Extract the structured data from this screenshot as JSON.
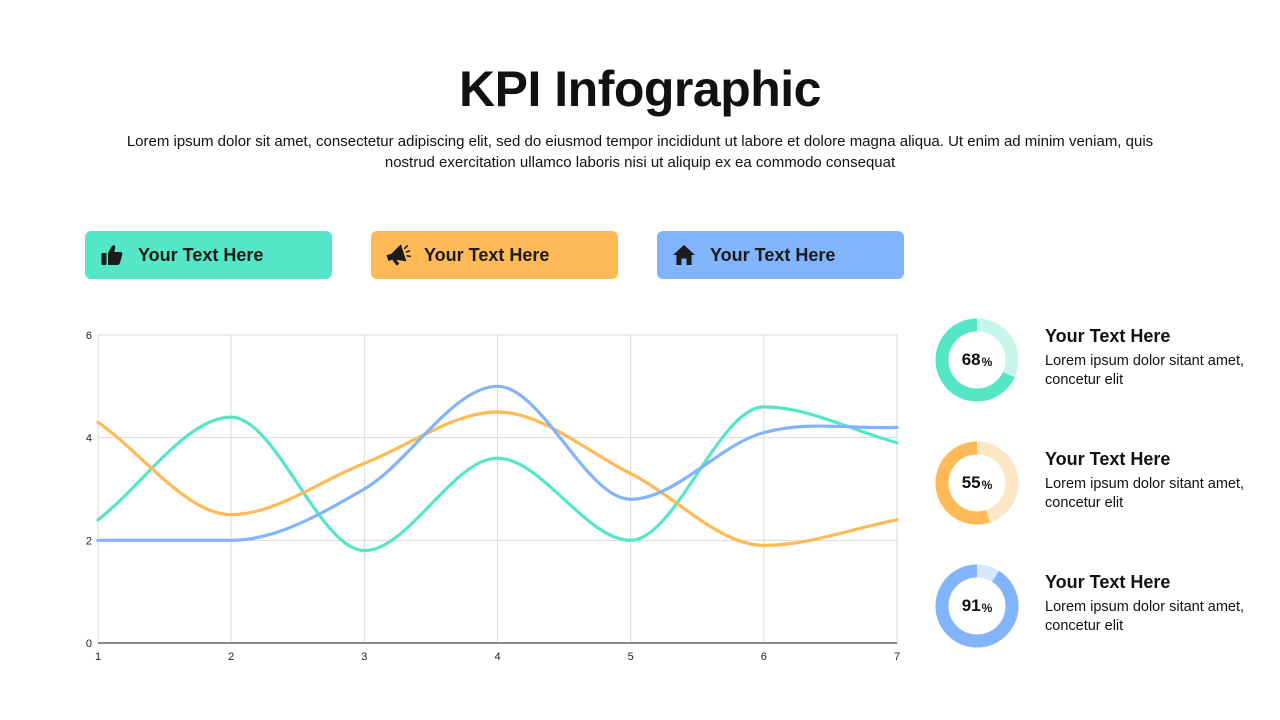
{
  "title": "KPI Infographic",
  "subtitle": "Lorem ipsum dolor sit amet, consectetur adipiscing elit, sed do eiusmod tempor incididunt ut labore et dolore magna aliqua. Ut enim ad minim veniam, quis nostrud exercitation ullamco laboris nisi ut aliquip ex ea commodo consequat",
  "pills": [
    {
      "label": "Your Text Here",
      "icon": "thumbs-up-icon",
      "color": "#55e6c8"
    },
    {
      "label": "Your Text Here",
      "icon": "megaphone-icon",
      "color": "#ffb957"
    },
    {
      "label": "Your Text Here",
      "icon": "home-icon",
      "color": "#82b4fc"
    }
  ],
  "kpis": [
    {
      "value": "68",
      "unit": "%",
      "percent": 68,
      "title": "Your Text Here",
      "text": "Lorem ipsum dolor sitant amet, concetur elit",
      "color": "#55e6c8",
      "track": "#c8f5ea"
    },
    {
      "value": "55",
      "unit": "%",
      "percent": 55,
      "title": "Your Text Here",
      "text": "Lorem ipsum dolor sitant amet, concetur elit",
      "color": "#ffb957",
      "track": "#fde6c3"
    },
    {
      "value": "91",
      "unit": "%",
      "percent": 91,
      "title": "Your Text Here",
      "text": "Lorem ipsum dolor sitant amet, concetur elit",
      "color": "#82b4fc",
      "track": "#d6e6fe"
    }
  ],
  "chart_data": {
    "type": "line",
    "x": [
      1,
      2,
      3,
      4,
      5,
      6,
      7
    ],
    "series": [
      {
        "color": "#55e6c8",
        "values": [
          2.4,
          4.4,
          1.8,
          3.6,
          2.0,
          4.6,
          3.9
        ]
      },
      {
        "color": "#ffb957",
        "values": [
          4.3,
          2.5,
          3.5,
          4.5,
          3.3,
          1.9,
          2.4
        ]
      },
      {
        "color": "#82b4fc",
        "values": [
          2.0,
          2.0,
          3.0,
          5.0,
          2.8,
          4.1,
          4.2
        ]
      }
    ],
    "xlim": [
      1,
      7
    ],
    "ylim": [
      0,
      6
    ],
    "yticks": [
      0,
      2,
      4,
      6
    ],
    "xticks": [
      1,
      2,
      3,
      4,
      5,
      6,
      7
    ],
    "grid": true,
    "smooth": true,
    "legend": "none"
  }
}
